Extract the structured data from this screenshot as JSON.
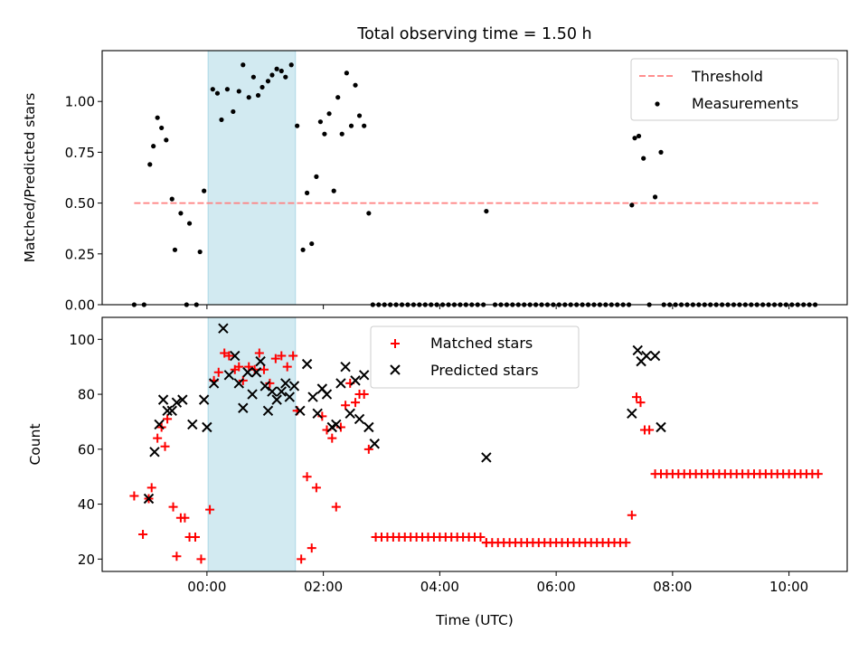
{
  "title": "Total observing time = 1.50 h",
  "chart_data": [
    {
      "type": "scatter",
      "ylabel": "Matched/Predicted stars",
      "xlabel": "",
      "xlim": [
        -1.8,
        11.0
      ],
      "ylim": [
        0,
        1.25
      ],
      "yticks": [
        0,
        0.25,
        0.5,
        0.75,
        1.0
      ],
      "ytick_labels": [
        "0.00",
        "0.25",
        "0.50",
        "0.75",
        "1.00"
      ],
      "xticks": [
        0,
        2,
        4,
        6,
        8,
        10
      ],
      "xtick_labels": [
        "00:00",
        "02:00",
        "04:00",
        "06:00",
        "08:00",
        "10:00"
      ],
      "grid": false,
      "legend": "upper right",
      "highlight_span": [
        0.02,
        1.52
      ],
      "highlight_color": "#add8e6",
      "threshold": {
        "name": "Threshold",
        "y": 0.5,
        "x": [
          -1.25,
          10.5
        ],
        "color": "#ff7f7f",
        "style": "dashed"
      },
      "series": [
        {
          "name": "Measurements",
          "color": "#000000",
          "x": [
            -1.25,
            -1.08,
            -0.98,
            -0.92,
            -0.85,
            -0.78,
            -0.7,
            -0.6,
            -0.55,
            -0.45,
            -0.35,
            -0.3,
            -0.18,
            -0.12,
            -0.05,
            0.1,
            0.18,
            0.25,
            0.35,
            0.45,
            0.55,
            0.62,
            0.72,
            0.8,
            0.88,
            0.95,
            1.05,
            1.12,
            1.2,
            1.28,
            1.35,
            1.45,
            1.55,
            1.65,
            1.72,
            1.8,
            1.88,
            1.95,
            2.02,
            2.1,
            2.18,
            2.25,
            2.32,
            2.4,
            2.48,
            2.55,
            2.62,
            2.7,
            2.78,
            2.85,
            4.8,
            7.3,
            7.35,
            7.42,
            7.5,
            7.6,
            7.7,
            7.8
          ],
          "y": [
            0,
            0,
            0.69,
            0.78,
            0.92,
            0.87,
            0.81,
            0.52,
            0.27,
            0.45,
            0,
            0.4,
            0,
            0.26,
            0.56,
            1.06,
            1.04,
            0.91,
            1.06,
            0.95,
            1.05,
            1.18,
            1.02,
            1.12,
            1.03,
            1.07,
            1.1,
            1.13,
            1.16,
            1.15,
            1.12,
            1.18,
            0.88,
            0.27,
            0.55,
            0.3,
            0.63,
            0.9,
            0.84,
            0.94,
            0.56,
            1.02,
            0.84,
            1.14,
            0.88,
            1.08,
            0.93,
            0.88,
            0.45,
            0,
            0.46,
            0.49,
            0.82,
            0.83,
            0.72,
            0,
            0.53,
            0.75
          ],
          "zero_run": {
            "x_start": 2.95,
            "x_end": 10.45,
            "step": 0.1,
            "y": 0,
            "gaps": [
              [
                4.75,
                4.85
              ],
              [
                7.28,
                7.82
              ]
            ]
          }
        }
      ]
    },
    {
      "type": "scatter",
      "ylabel": "Count",
      "xlabel": "Time (UTC)",
      "xlim": [
        -1.8,
        11.0
      ],
      "ylim": [
        15.5,
        108
      ],
      "yticks": [
        20,
        40,
        60,
        80,
        100
      ],
      "ytick_labels": [
        "20",
        "40",
        "60",
        "80",
        "100"
      ],
      "xticks": [
        0,
        2,
        4,
        6,
        8,
        10
      ],
      "xtick_labels": [
        "00:00",
        "02:00",
        "04:00",
        "06:00",
        "08:00",
        "10:00"
      ],
      "grid": false,
      "legend": "upper center",
      "highlight_span": [
        0.02,
        1.52
      ],
      "highlight_color": "#add8e6",
      "series": [
        {
          "name": "Matched stars",
          "marker": "plus",
          "color": "#ff0000",
          "x": [
            -1.25,
            -1.1,
            -1.0,
            -0.95,
            -0.85,
            -0.78,
            -0.72,
            -0.68,
            -0.58,
            -0.52,
            -0.45,
            -0.38,
            -0.3,
            -0.2,
            -0.1,
            0.05,
            0.12,
            0.2,
            0.3,
            0.38,
            0.48,
            0.55,
            0.62,
            0.72,
            0.82,
            0.9,
            0.98,
            1.08,
            1.18,
            1.28,
            1.38,
            1.48,
            1.55,
            1.62,
            1.72,
            1.8,
            1.88,
            1.98,
            2.06,
            2.15,
            2.22,
            2.3,
            2.38,
            2.46,
            2.55,
            2.62,
            2.7,
            2.78,
            4.8,
            7.3,
            7.38,
            7.45,
            7.52,
            7.6
          ],
          "y": [
            43,
            29,
            42,
            46,
            64,
            68,
            61,
            71,
            39,
            21,
            35,
            35,
            28,
            28,
            20,
            38,
            85,
            88,
            95,
            94,
            89,
            90,
            85,
            90,
            89,
            95,
            89,
            84,
            93,
            94,
            90,
            94,
            74,
            20,
            50,
            24,
            46,
            72,
            67,
            64,
            39,
            68,
            76,
            84,
            77,
            80,
            80,
            60,
            26,
            36,
            79,
            77,
            67,
            67
          ],
          "plateaus": [
            {
              "x_start": 2.9,
              "x_end": 4.7,
              "step": 0.1,
              "y": 28
            },
            {
              "x_start": 4.8,
              "x_end": 7.2,
              "step": 0.1,
              "y": 26
            },
            {
              "x_start": 7.7,
              "x_end": 10.5,
              "step": 0.1,
              "y": 51
            }
          ]
        },
        {
          "name": "Predicted stars",
          "marker": "x",
          "color": "#000000",
          "x": [
            -1.0,
            -0.9,
            -0.82,
            -0.75,
            -0.68,
            -0.6,
            -0.52,
            -0.42,
            -0.25,
            -0.05,
            0.0,
            0.12,
            0.28,
            0.38,
            0.48,
            0.55,
            0.62,
            0.7,
            0.78,
            0.85,
            0.92,
            1.0,
            1.05,
            1.12,
            1.2,
            1.28,
            1.35,
            1.42,
            1.5,
            1.6,
            1.72,
            1.82,
            1.9,
            1.98,
            2.06,
            2.15,
            2.22,
            2.3,
            2.38,
            2.46,
            2.55,
            2.62,
            2.7,
            2.78,
            2.88,
            4.8,
            7.3,
            7.4,
            7.46,
            7.55,
            7.7,
            7.8
          ],
          "y": [
            42,
            59,
            69,
            78,
            74,
            74,
            77,
            78,
            69,
            78,
            68,
            84,
            104,
            87,
            94,
            84,
            75,
            88,
            80,
            88,
            92,
            83,
            74,
            81,
            78,
            81,
            84,
            79,
            83,
            74,
            91,
            79,
            73,
            82,
            80,
            68,
            69,
            84,
            90,
            73,
            85,
            71,
            87,
            68,
            62,
            57,
            73,
            96,
            92,
            94,
            94,
            68
          ]
        }
      ]
    }
  ]
}
